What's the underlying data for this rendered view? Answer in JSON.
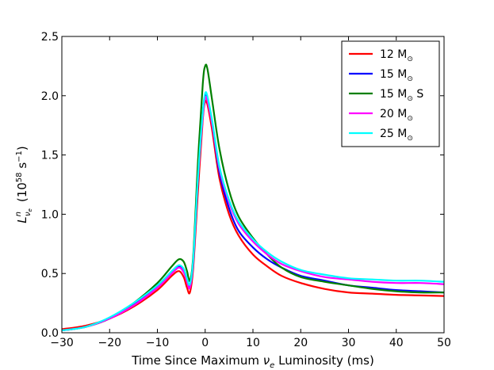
{
  "chart_data": {
    "type": "line",
    "title": "",
    "xlabel": "Time Since Maximum νₑ Luminosity (ms)",
    "xlabel_parts": {
      "pre": "Time Since Maximum ",
      "sym": "ν",
      "sub": "e",
      "post": " Luminosity (ms)"
    },
    "ylabel": "Lⁿνₑ  (10⁵⁸ s⁻¹)",
    "ylabel_parts": {
      "main": "L",
      "sup": "n",
      "sub": "ν",
      "subsub": "e",
      "unit_pre": "(10",
      "unit_exp": "58",
      "unit_mid": " s",
      "unit_exp2": "−1",
      "unit_post": ")"
    },
    "xlim": [
      -30,
      50
    ],
    "ylim": [
      0.0,
      2.5
    ],
    "xticks": [
      "−30",
      "−20",
      "−10",
      "0",
      "10",
      "20",
      "30",
      "40",
      "50"
    ],
    "xtick_values": [
      -30,
      -20,
      -10,
      0,
      10,
      20,
      30,
      40,
      50
    ],
    "yticks": [
      "0.0",
      "0.5",
      "1.0",
      "1.5",
      "2.0",
      "2.5"
    ],
    "ytick_values": [
      0.0,
      0.5,
      1.0,
      1.5,
      2.0,
      2.5
    ],
    "grid": false,
    "legend_position": "top-right",
    "series": [
      {
        "name": "12 M⊙",
        "label_main": "12 M",
        "label_suffix": "",
        "color": "#ff0000",
        "x": [
          -30,
          -25,
          -20,
          -15,
          -10,
          -7,
          -5.5,
          -4.5,
          -3.8,
          -3.2,
          -2.5,
          -1.5,
          -0.5,
          0,
          0.5,
          1.5,
          3,
          5,
          7,
          10,
          13,
          16,
          20,
          25,
          30,
          35,
          40,
          45,
          50
        ],
        "y": [
          0.03,
          0.06,
          0.12,
          0.22,
          0.36,
          0.48,
          0.52,
          0.47,
          0.38,
          0.34,
          0.55,
          1.2,
          1.8,
          1.95,
          1.92,
          1.7,
          1.3,
          1.0,
          0.82,
          0.66,
          0.56,
          0.48,
          0.42,
          0.37,
          0.34,
          0.33,
          0.32,
          0.315,
          0.31
        ]
      },
      {
        "name": "15 M⊙",
        "label_main": "15 M",
        "label_suffix": "",
        "color": "#0000ff",
        "x": [
          -30,
          -25,
          -20,
          -15,
          -10,
          -7,
          -5.5,
          -4.5,
          -3.8,
          -3.2,
          -2.5,
          -1.5,
          -0.5,
          0,
          0.5,
          1.5,
          3,
          5,
          7,
          10,
          13,
          16,
          20,
          25,
          30,
          35,
          40,
          45,
          50
        ],
        "y": [
          0.02,
          0.05,
          0.12,
          0.24,
          0.39,
          0.51,
          0.56,
          0.53,
          0.45,
          0.4,
          0.6,
          1.3,
          1.85,
          2.0,
          1.97,
          1.75,
          1.35,
          1.05,
          0.86,
          0.72,
          0.62,
          0.55,
          0.48,
          0.44,
          0.4,
          0.38,
          0.36,
          0.35,
          0.34
        ]
      },
      {
        "name": "15 M⊙ S",
        "label_main": "15 M",
        "label_suffix": " S",
        "color": "#008000",
        "x": [
          -30,
          -25,
          -20,
          -15,
          -10,
          -7,
          -5.5,
          -4.5,
          -3.8,
          -3.2,
          -2.5,
          -1.5,
          -0.5,
          0,
          0.5,
          1.5,
          3,
          5,
          7,
          10,
          13,
          16,
          20,
          25,
          30,
          35,
          40,
          45,
          50
        ],
        "y": [
          0.02,
          0.05,
          0.12,
          0.25,
          0.42,
          0.56,
          0.62,
          0.6,
          0.52,
          0.44,
          0.65,
          1.45,
          2.1,
          2.25,
          2.22,
          1.95,
          1.55,
          1.2,
          0.98,
          0.8,
          0.66,
          0.55,
          0.47,
          0.43,
          0.4,
          0.37,
          0.35,
          0.34,
          0.34
        ]
      },
      {
        "name": "20 M⊙",
        "label_main": "20 M",
        "label_suffix": "",
        "color": "#ff00ff",
        "x": [
          -30,
          -25,
          -20,
          -15,
          -10,
          -7,
          -5.5,
          -4.5,
          -3.8,
          -3.2,
          -2.5,
          -1.5,
          -0.5,
          0,
          0.5,
          1.5,
          3,
          5,
          7,
          10,
          13,
          16,
          20,
          25,
          30,
          35,
          40,
          45,
          50
        ],
        "y": [
          0.02,
          0.05,
          0.12,
          0.23,
          0.38,
          0.5,
          0.55,
          0.51,
          0.43,
          0.38,
          0.6,
          1.3,
          1.82,
          1.98,
          1.95,
          1.75,
          1.38,
          1.1,
          0.92,
          0.77,
          0.66,
          0.58,
          0.52,
          0.47,
          0.45,
          0.43,
          0.42,
          0.42,
          0.41
        ]
      },
      {
        "name": "25 M⊙",
        "label_main": "25 M",
        "label_suffix": "",
        "color": "#00ffff",
        "x": [
          -30,
          -25,
          -20,
          -15,
          -10,
          -7,
          -5.5,
          -4.5,
          -3.8,
          -3.2,
          -2.5,
          -1.5,
          -0.5,
          0,
          0.5,
          1.5,
          3,
          5,
          7,
          10,
          13,
          16,
          20,
          25,
          30,
          35,
          40,
          45,
          50
        ],
        "y": [
          0.02,
          0.05,
          0.13,
          0.25,
          0.4,
          0.52,
          0.57,
          0.54,
          0.46,
          0.41,
          0.62,
          1.32,
          1.86,
          2.02,
          1.99,
          1.78,
          1.4,
          1.12,
          0.94,
          0.79,
          0.68,
          0.6,
          0.53,
          0.49,
          0.46,
          0.45,
          0.44,
          0.44,
          0.43
        ]
      }
    ]
  }
}
